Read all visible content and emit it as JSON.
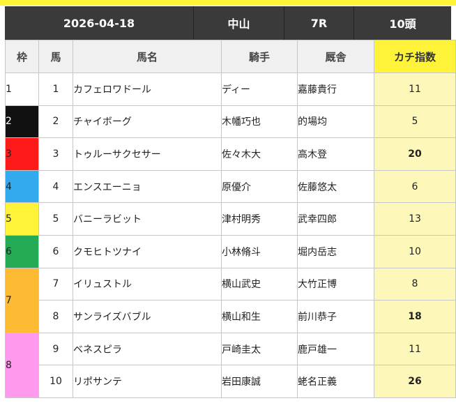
{
  "header": {
    "date": "2026-04-18",
    "venue": "中山",
    "race": "7R",
    "runners": "10頭"
  },
  "columns": [
    "枠",
    "馬",
    "馬名",
    "騎手",
    "厩舎",
    "カチ指数"
  ],
  "colors": {
    "header_bg": "#3a3a3a",
    "index_header_bg": "#fff33a",
    "index_cell_bg": "#fdf8b9",
    "highlight_text": "#d22a1a",
    "waku": {
      "1": "#ffffff",
      "2": "#111111",
      "3": "#ff1a1a",
      "4": "#33aaee",
      "5": "#fff33a",
      "6": "#22aa55",
      "7": "#fdbb33",
      "8": "#ff99ee"
    }
  },
  "frames": [
    {
      "waku": "1",
      "color": "#ffffff",
      "text_color": "#222222",
      "horses": [
        {
          "num": "1",
          "name": "カフェロワドール",
          "jockey": "ディー",
          "trainer": "嘉藤貴行",
          "index": "11",
          "hot": false
        }
      ]
    },
    {
      "waku": "2",
      "color": "#111111",
      "text_color": "#ffffff",
      "horses": [
        {
          "num": "2",
          "name": "チャイボーグ",
          "jockey": "木幡巧也",
          "trainer": "的場均",
          "index": "5",
          "hot": false
        }
      ]
    },
    {
      "waku": "3",
      "color": "#ff1a1a",
      "text_color": "#222222",
      "horses": [
        {
          "num": "3",
          "name": "トゥルーサクセサー",
          "jockey": "佐々木大",
          "trainer": "高木登",
          "index": "20",
          "hot": true
        }
      ]
    },
    {
      "waku": "4",
      "color": "#33aaee",
      "text_color": "#222222",
      "horses": [
        {
          "num": "4",
          "name": "エンスエーニョ",
          "jockey": "原優介",
          "trainer": "佐藤悠太",
          "index": "6",
          "hot": false
        }
      ]
    },
    {
      "waku": "5",
      "color": "#fff33a",
      "text_color": "#222222",
      "horses": [
        {
          "num": "5",
          "name": "バニーラビット",
          "jockey": "津村明秀",
          "trainer": "武幸四郎",
          "index": "13",
          "hot": false
        }
      ]
    },
    {
      "waku": "6",
      "color": "#22aa55",
      "text_color": "#222222",
      "horses": [
        {
          "num": "6",
          "name": "クモヒトツナイ",
          "jockey": "小林脩斗",
          "trainer": "堀内岳志",
          "index": "10",
          "hot": false
        }
      ]
    },
    {
      "waku": "7",
      "color": "#fdbb33",
      "text_color": "#222222",
      "horses": [
        {
          "num": "7",
          "name": "イリュストル",
          "jockey": "横山武史",
          "trainer": "大竹正博",
          "index": "8",
          "hot": false
        },
        {
          "num": "8",
          "name": "サンライズバブル",
          "jockey": "横山和生",
          "trainer": "前川恭子",
          "index": "18",
          "hot": true
        }
      ]
    },
    {
      "waku": "8",
      "color": "#ff99ee",
      "text_color": "#222222",
      "horses": [
        {
          "num": "9",
          "name": "ベネスピラ",
          "jockey": "戸崎圭太",
          "trainer": "鹿戸雄一",
          "index": "11",
          "hot": false
        },
        {
          "num": "10",
          "name": "リポサンテ",
          "jockey": "岩田康誠",
          "trainer": "蛯名正義",
          "index": "26",
          "hot": true
        }
      ]
    }
  ]
}
